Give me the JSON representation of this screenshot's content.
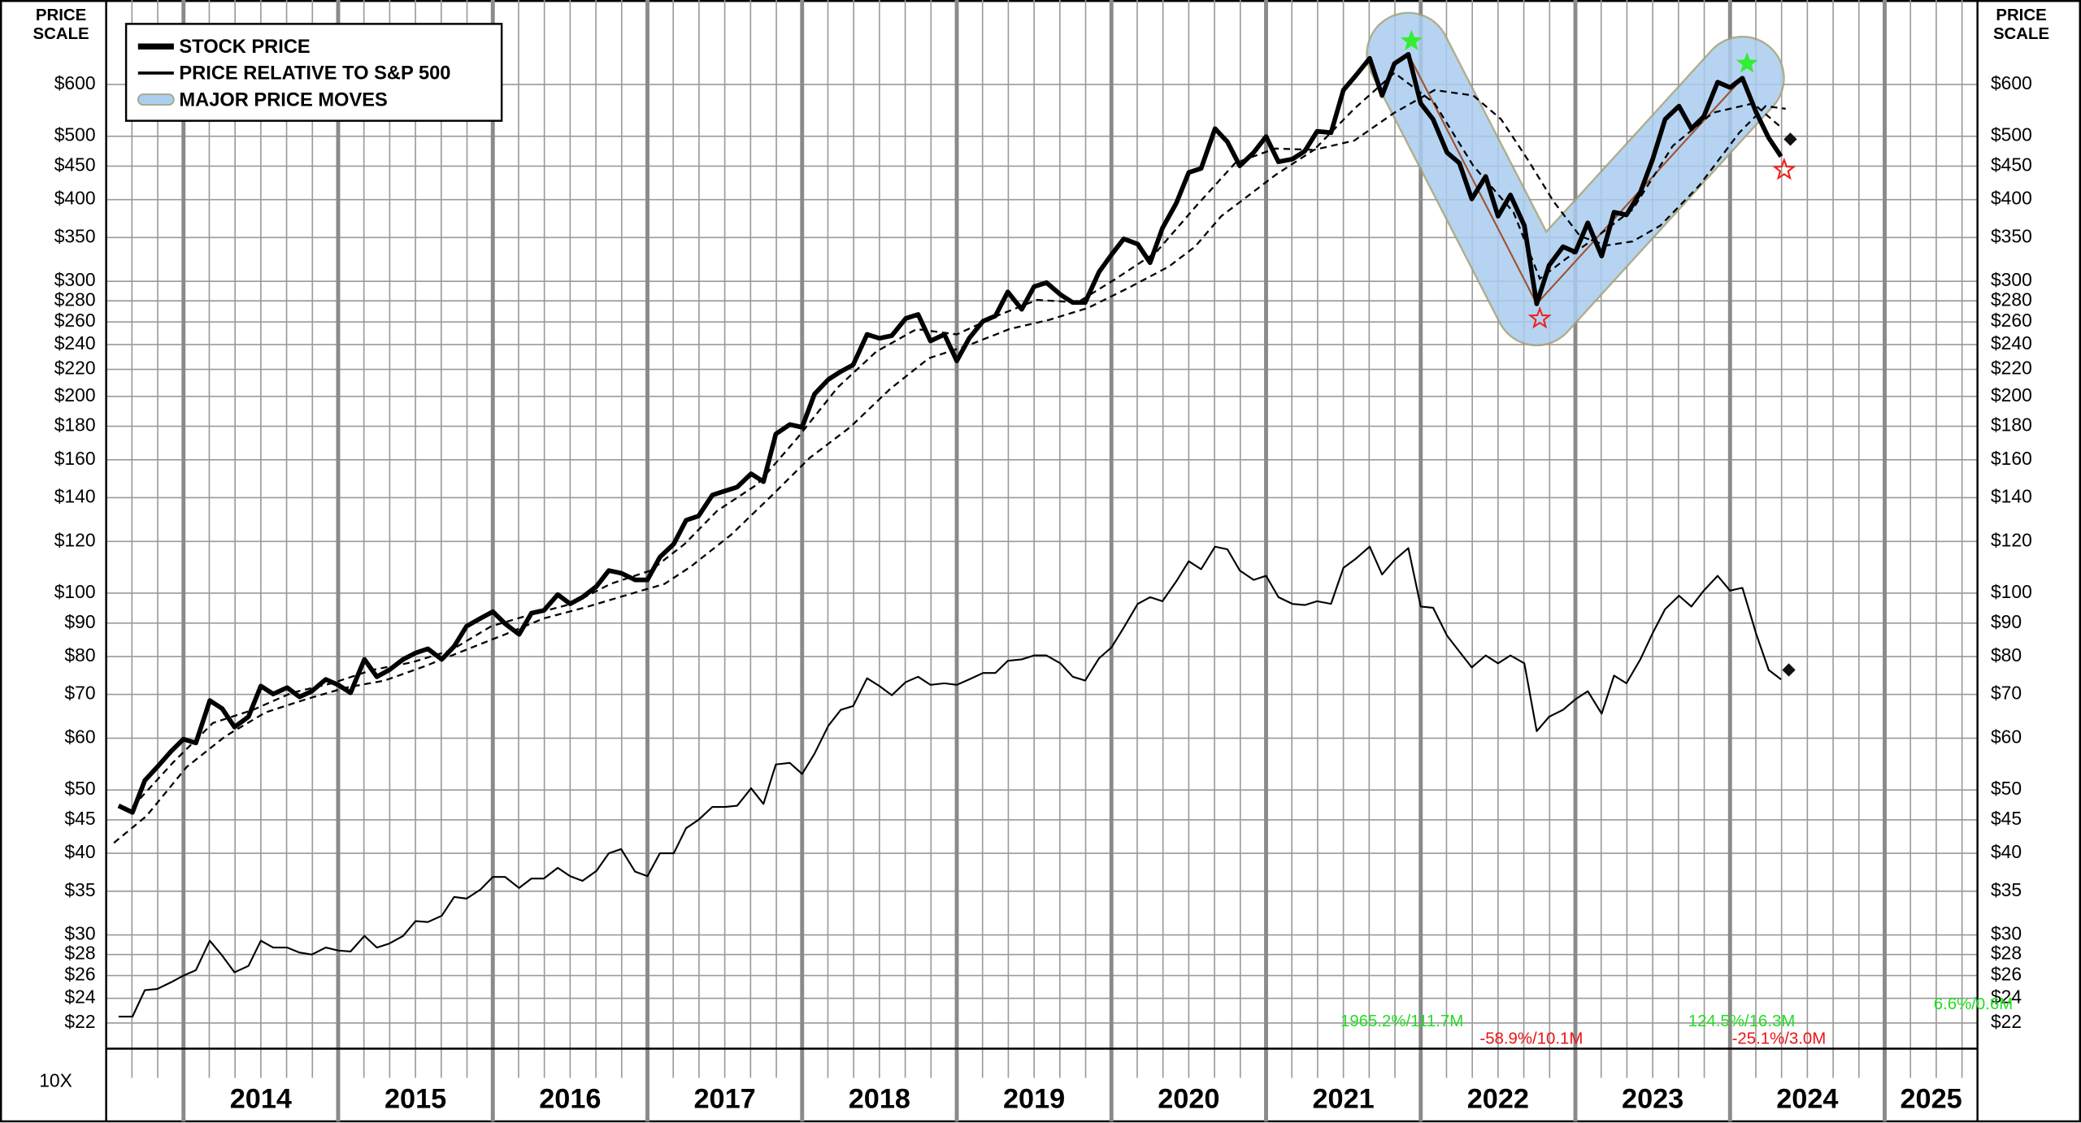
{
  "chart_data": {
    "type": "line",
    "ylabel": [
      "PRICE",
      "SCALE"
    ],
    "scale_note": "10X",
    "log_y": true,
    "grid": true,
    "legend": "upper left",
    "xlim": [
      2013.5,
      2025.6
    ],
    "xticks": [
      2014,
      2015,
      2016,
      2017,
      2018,
      2019,
      2020,
      2021,
      2022,
      2023,
      2024,
      2025
    ],
    "ylim": [
      20.1,
      808
    ],
    "yticks": [
      {
        "value": 600,
        "label": "$600"
      },
      {
        "value": 500,
        "label": "$500"
      },
      {
        "value": 450,
        "label": "$450"
      },
      {
        "value": 400,
        "label": "$400"
      },
      {
        "value": 350,
        "label": "$350"
      },
      {
        "value": 300,
        "label": "$300"
      },
      {
        "value": 280,
        "label": "$280"
      },
      {
        "value": 260,
        "label": "$260"
      },
      {
        "value": 240,
        "label": "$240"
      },
      {
        "value": 220,
        "label": "$220"
      },
      {
        "value": 200,
        "label": "$200"
      },
      {
        "value": 180,
        "label": "$180"
      },
      {
        "value": 160,
        "label": "$160"
      },
      {
        "value": 140,
        "label": "$140"
      },
      {
        "value": 120,
        "label": "$120"
      },
      {
        "value": 100,
        "label": "$100"
      },
      {
        "value": 90,
        "label": "$90"
      },
      {
        "value": 80,
        "label": "$80"
      },
      {
        "value": 70,
        "label": "$70"
      },
      {
        "value": 60,
        "label": "$60"
      },
      {
        "value": 50,
        "label": "$50"
      },
      {
        "value": 45,
        "label": "$45"
      },
      {
        "value": 40,
        "label": "$40"
      },
      {
        "value": 35,
        "label": "$35"
      },
      {
        "value": 30,
        "label": "$30"
      },
      {
        "value": 28,
        "label": "$28"
      },
      {
        "value": 26,
        "label": "$26"
      },
      {
        "value": 24,
        "label": "$24"
      },
      {
        "value": 22,
        "label": "$22"
      }
    ],
    "x": [
      2013.58,
      2013.67,
      2013.75,
      2013.83,
      2013.92,
      2014,
      2014.08,
      2014.17,
      2014.25,
      2014.33,
      2014.42,
      2014.5,
      2014.58,
      2014.67,
      2014.75,
      2014.83,
      2014.92,
      2015,
      2015.08,
      2015.17,
      2015.25,
      2015.33,
      2015.42,
      2015.5,
      2015.58,
      2015.67,
      2015.75,
      2015.83,
      2015.92,
      2016,
      2016.08,
      2016.17,
      2016.25,
      2016.33,
      2016.42,
      2016.5,
      2016.58,
      2016.67,
      2016.75,
      2016.83,
      2016.92,
      2017,
      2017.08,
      2017.17,
      2017.25,
      2017.33,
      2017.42,
      2017.5,
      2017.58,
      2017.67,
      2017.75,
      2017.83,
      2017.92,
      2018,
      2018.08,
      2018.17,
      2018.25,
      2018.33,
      2018.42,
      2018.5,
      2018.58,
      2018.67,
      2018.75,
      2018.83,
      2018.92,
      2019,
      2019.08,
      2019.17,
      2019.25,
      2019.33,
      2019.42,
      2019.5,
      2019.58,
      2019.67,
      2019.75,
      2019.83,
      2019.92,
      2020,
      2020.08,
      2020.17,
      2020.25,
      2020.33,
      2020.42,
      2020.5,
      2020.58,
      2020.67,
      2020.75,
      2020.83,
      2020.92,
      2021,
      2021.08,
      2021.17,
      2021.25,
      2021.33,
      2021.42,
      2021.5,
      2021.58,
      2021.67,
      2021.75,
      2021.83,
      2021.92,
      2022,
      2022.08,
      2022.17,
      2022.25,
      2022.33,
      2022.42,
      2022.5,
      2022.58,
      2022.67,
      2022.75,
      2022.83,
      2022.92,
      2023,
      2023.08,
      2023.17,
      2023.25,
      2023.33,
      2023.42,
      2023.5,
      2023.58,
      2023.67,
      2023.75,
      2023.83,
      2023.92,
      2024,
      2024.08,
      2024.17,
      2024.25,
      2024.33
    ],
    "series": [
      {
        "name": "STOCK PRICE",
        "type": "line",
        "color": "#000000",
        "width": 3.5,
        "values": [
          47.3,
          46.2,
          51.7,
          54.2,
          57.3,
          59.8,
          59.0,
          68.5,
          66.6,
          62.4,
          64.7,
          72.1,
          70.1,
          71.7,
          69.4,
          70.8,
          73.8,
          72.4,
          70.4,
          79.2,
          74.5,
          76.3,
          79.2,
          81.0,
          82.2,
          79.2,
          82.9,
          89.0,
          91.5,
          93.7,
          89.8,
          86.5,
          93.2,
          94.1,
          99.5,
          96.3,
          98.6,
          102.4,
          108.3,
          107.3,
          104.8,
          104.8,
          113.5,
          118.9,
          129.3,
          131.2,
          141.3,
          143.3,
          145.3,
          152.3,
          148.1,
          175.2,
          181.1,
          179.4,
          201.6,
          212.3,
          218.3,
          223.5,
          248.8,
          245.4,
          247.7,
          263.2,
          266.9,
          243.1,
          248.8,
          226.6,
          245.4,
          260.7,
          265.6,
          289.0,
          271.8,
          294.4,
          298.6,
          286.3,
          278.4,
          278.4,
          310.0,
          329.4,
          348.4,
          342.0,
          320.3,
          361.8,
          395.2,
          440.1,
          446.4,
          513.6,
          490.2,
          450.5,
          472.2,
          499.4,
          457.0,
          461.3,
          474.4,
          508.8,
          506.4,
          588.3,
          619.2,
          658.0,
          577.2,
          645.8,
          667.3,
          561.3,
          530.7,
          472.2,
          454.9,
          400.9,
          434.0,
          377.3,
          406.6,
          365.1,
          277.1,
          317.3,
          338.8,
          332.5,
          368.5,
          327.9,
          382.6,
          379.0,
          410.3,
          461.3,
          530.7,
          556.0,
          513.6,
          535.7,
          605.0,
          593.7,
          613.5,
          543.3,
          497.1,
          465.6
        ],
        "end_marker": {
          "x": 2024.39,
          "value": 494.8
        }
      },
      {
        "name": "PRICE RELATIVE TO S&P 500",
        "type": "line",
        "color": "#000000",
        "width": 1.3,
        "values": [
          22.5,
          22.5,
          24.7,
          24.8,
          25.4,
          26.0,
          26.5,
          29.4,
          27.9,
          26.3,
          26.9,
          29.4,
          28.7,
          28.7,
          28.2,
          28.0,
          28.7,
          28.4,
          28.3,
          29.9,
          28.7,
          29.1,
          29.9,
          31.5,
          31.4,
          32.1,
          34.3,
          34.1,
          35.2,
          36.8,
          36.8,
          35.4,
          36.6,
          36.6,
          38.0,
          36.9,
          36.3,
          37.6,
          40.0,
          40.6,
          37.5,
          36.9,
          40.0,
          40.0,
          43.7,
          45.0,
          47.1,
          47.1,
          47.3,
          50.3,
          47.6,
          54.7,
          55.0,
          52.9,
          56.8,
          62.7,
          66.3,
          67.2,
          74.1,
          72.1,
          69.8,
          73.1,
          74.5,
          72.4,
          72.8,
          72.4,
          73.8,
          75.5,
          75.5,
          78.8,
          79.2,
          80.3,
          80.3,
          78.1,
          74.5,
          73.5,
          79.5,
          82.6,
          88.6,
          96.3,
          98.6,
          97.2,
          104.3,
          111.9,
          108.8,
          117.8,
          116.7,
          108.3,
          104.8,
          106.3,
          98.6,
          96.3,
          95.9,
          97.2,
          96.3,
          109.3,
          112.9,
          117.8,
          106.8,
          112.4,
          117.2,
          95.4,
          95.0,
          86.1,
          81.4,
          77.0,
          80.3,
          78.1,
          80.3,
          78.1,
          61.5,
          64.7,
          66.3,
          68.8,
          70.8,
          65.4,
          74.8,
          72.8,
          79.2,
          86.9,
          94.5,
          99.1,
          95.4,
          100.9,
          106.3,
          100.9,
          101.9,
          86.5,
          76.3,
          73.8
        ],
        "end_marker": {
          "x": 2024.38,
          "value": 76.3
        }
      },
      {
        "name": "MAJOR PRICE MOVES",
        "type": "band",
        "color": "#aacdf0",
        "edge_color": "#a3a27a",
        "trend_color": "#a0522d",
        "x": [
          2021.92,
          2022.75,
          2024.08
        ],
        "values": [
          667.3,
          277.1,
          613.5
        ]
      }
    ],
    "moving_averages": [
      {
        "color": "#000000",
        "dashed": true,
        "x": [
          2013.55,
          2013.76,
          2014.02,
          2014.27,
          2014.53,
          2014.79,
          2015.05,
          2015.3,
          2015.56,
          2015.82,
          2016.08,
          2016.33,
          2016.59,
          2016.85,
          2017.11,
          2017.28,
          2017.54,
          2017.79,
          2018.05,
          2018.31,
          2018.57,
          2018.82,
          2019.08,
          2019.34,
          2019.6,
          2019.85,
          2020.11,
          2020.37,
          2020.54,
          2020.71,
          2020.88,
          2021.06,
          2021.31,
          2021.57,
          2021.83,
          2022.09,
          2022.34,
          2022.52,
          2022.69,
          2022.86,
          2023.03,
          2023.2,
          2023.37,
          2023.55,
          2023.8,
          2024.06,
          2024.23,
          2024.36
        ],
        "values": [
          41.5,
          45.6,
          54.2,
          60.4,
          65.7,
          68.8,
          71.7,
          73.5,
          77.3,
          81.8,
          86.5,
          91.5,
          95.0,
          99.1,
          103.3,
          109.8,
          122.8,
          140.0,
          161.1,
          179.4,
          205.4,
          228.8,
          239.7,
          253.5,
          262.0,
          273.2,
          293.1,
          315.8,
          338.8,
          377.3,
          404.7,
          436.1,
          476.6,
          492.4,
          543.3,
          588.3,
          577.2,
          530.7,
          461.3,
          397.1,
          351.7,
          340.4,
          345.2,
          365.1,
          420.0,
          506.4,
          556.0,
          550.8
        ]
      },
      {
        "color": "#000000",
        "dashed": true,
        "x": [
          2013.67,
          2013.93,
          2014.19,
          2014.45,
          2014.7,
          2014.96,
          2015.22,
          2015.48,
          2015.73,
          2015.99,
          2016.25,
          2016.51,
          2016.76,
          2017.02,
          2017.24,
          2017.45,
          2017.71,
          2017.97,
          2018.23,
          2018.48,
          2018.74,
          2019,
          2019.26,
          2019.52,
          2019.78,
          2020.03,
          2020.29,
          2020.55,
          2020.8,
          2021.06,
          2021.31,
          2021.57,
          2021.83,
          2022.09,
          2022.34,
          2022.6,
          2022.77,
          2022.94,
          2023.12,
          2023.37,
          2023.63,
          2023.89,
          2024.15,
          2024.32
        ],
        "values": [
          47.1,
          55.0,
          63.3,
          66.3,
          70.4,
          72.8,
          76.3,
          78.4,
          81.8,
          89.0,
          92.8,
          96.3,
          103.3,
          108.3,
          118.9,
          133.6,
          146.7,
          172.8,
          206.4,
          234.2,
          253.5,
          248.8,
          265.6,
          281.0,
          278.4,
          302.8,
          332.5,
          391.6,
          454.9,
          478.8,
          476.6,
          550.8,
          625.1,
          561.3,
          450.5,
          382.6,
          302.8,
          324.8,
          348.4,
          386.2,
          483.4,
          543.3,
          561.3,
          518.4
        ]
      }
    ],
    "stars": [
      {
        "x": 2021.94,
        "value": 699,
        "color": "#33ee33",
        "filled": true
      },
      {
        "x": 2022.77,
        "value": 263,
        "color": "#ee2222",
        "filled": false
      },
      {
        "x": 2024.11,
        "value": 646,
        "color": "#33ee33",
        "filled": true
      },
      {
        "x": 2024.35,
        "value": 444,
        "color": "#ee2222",
        "filled": false
      }
    ],
    "annotations": [
      {
        "text": "1965.2%/111.7M",
        "color": "#22dd22"
      },
      {
        "text": "-58.9%/10.1M",
        "color": "#ee1111"
      },
      {
        "text": "124.5%/16.3M",
        "color": "#22dd22"
      },
      {
        "text": "-25.1%/3.0M",
        "color": "#ee1111"
      },
      {
        "text": "6.6%/0.6M",
        "color": "#22dd22"
      }
    ]
  }
}
